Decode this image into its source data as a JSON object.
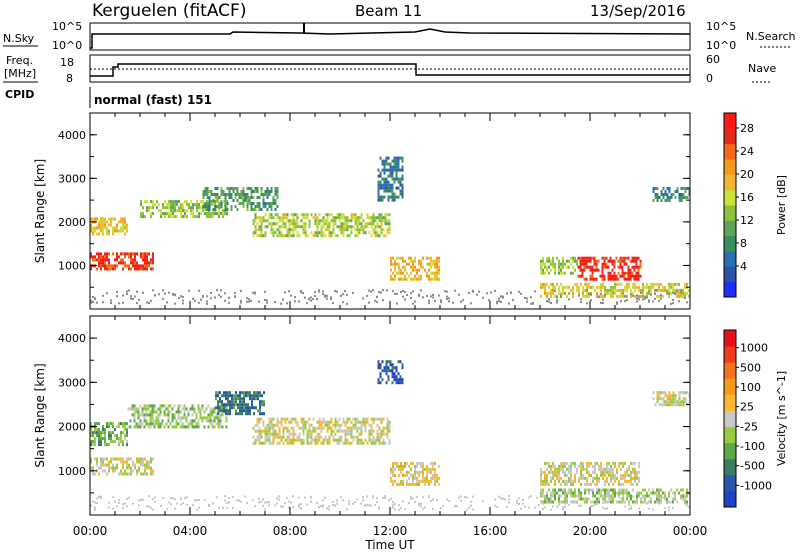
{
  "header": {
    "station": "Kerguelen (fitACF)",
    "beam": "Beam 11",
    "date": "13/Sep/2016"
  },
  "sky_panel": {
    "left_label": "N.Sky",
    "right_label": "N.Search",
    "left_ticks": [
      "10^5",
      "10^0"
    ],
    "right_ticks": [
      "10^5",
      "10^0"
    ]
  },
  "freq_panel": {
    "left_label_1": "Freq.",
    "left_label_2": "[MHz]",
    "right_label": "Nave",
    "left_ticks": [
      "18",
      "8"
    ],
    "right_ticks": [
      "60",
      "0"
    ],
    "cpid_label": "CPID"
  },
  "mode_text": "normal (fast) 151",
  "time_axis": {
    "ticks": [
      "00:00",
      "04:00",
      "08:00",
      "12:00",
      "16:00",
      "20:00",
      "00:00"
    ],
    "label": "Time UT"
  },
  "colors": {
    "power_scale": [
      "#1f2dff",
      "#2b51a6",
      "#2b6fb0",
      "#3c8f5c",
      "#61a35b",
      "#8cc23b",
      "#cde03a",
      "#f2b633",
      "#f7991d",
      "#f26a1b",
      "#e3281c",
      "#ff1a12"
    ],
    "velocity_scale": [
      "#2142c8",
      "#2a56a8",
      "#3a7d62",
      "#5ea84a",
      "#97cc40",
      "#c8c8c8",
      "#f6b92f",
      "#f59a1a",
      "#f2731a",
      "#ed3d1c",
      "#e4101a"
    ],
    "grid": "#000000"
  },
  "chart_data": [
    {
      "type": "heatmap",
      "title": "",
      "xlabel": "",
      "ylabel": "Slant Range [km]",
      "xlim": [
        "00:00",
        "00:00"
      ],
      "ylim": [
        0,
        4500
      ],
      "y_ticks": [
        "1000",
        "2000",
        "3000",
        "4000"
      ],
      "colorbar": {
        "label": "Power [dB]",
        "ticks": [
          "28",
          "24",
          "20",
          "16",
          "12",
          "8",
          "4"
        ],
        "range": [
          0,
          30
        ]
      },
      "regions": [
        {
          "t_start": 0.0,
          "t_end": 1.5,
          "range_start": 1700,
          "range_end": 2100,
          "value": 18
        },
        {
          "t_start": 0.0,
          "t_end": 2.5,
          "range_start": 950,
          "range_end": 1300,
          "value": 26
        },
        {
          "t_start": 2.0,
          "t_end": 5.5,
          "range_start": 2100,
          "range_end": 2500,
          "value": 14
        },
        {
          "t_start": 4.5,
          "t_end": 7.5,
          "range_start": 2300,
          "range_end": 2800,
          "value": 10
        },
        {
          "t_start": 6.5,
          "t_end": 12.0,
          "range_start": 1700,
          "range_end": 2200,
          "value": 15
        },
        {
          "t_start": 11.5,
          "t_end": 12.5,
          "range_start": 2500,
          "range_end": 3500,
          "value": 7
        },
        {
          "t_start": 12.0,
          "t_end": 14.0,
          "range_start": 700,
          "range_end": 1200,
          "value": 19
        },
        {
          "t_start": 18.0,
          "t_end": 19.5,
          "range_start": 800,
          "range_end": 1200,
          "value": 14
        },
        {
          "t_start": 19.5,
          "t_end": 22.0,
          "range_start": 700,
          "range_end": 1200,
          "value": 27
        },
        {
          "t_start": 18.0,
          "t_end": 24.0,
          "range_start": 300,
          "range_end": 600,
          "value": 17
        },
        {
          "t_start": 22.5,
          "t_end": 24.0,
          "range_start": 2500,
          "range_end": 2800,
          "value": 8
        }
      ]
    },
    {
      "type": "heatmap",
      "title": "",
      "xlabel": "Time UT",
      "ylabel": "Slant Range [km]",
      "xlim": [
        "00:00",
        "00:00"
      ],
      "ylim": [
        0,
        4500
      ],
      "y_ticks": [
        "1000",
        "2000",
        "3000",
        "4000"
      ],
      "colorbar": {
        "label": "Velocity [m s^-1]",
        "ticks": [
          "1000",
          "500",
          "100",
          "25",
          "-25",
          "-100",
          "-500",
          "-1000"
        ],
        "range": [
          -1000,
          1000
        ]
      },
      "regions": [
        {
          "t_start": 0.0,
          "t_end": 1.5,
          "range_start": 1600,
          "range_end": 2100,
          "value": -300
        },
        {
          "t_start": 0.0,
          "t_end": 2.5,
          "range_start": 900,
          "range_end": 1300,
          "value": -50
        },
        {
          "t_start": 1.5,
          "t_end": 5.5,
          "range_start": 2000,
          "range_end": 2500,
          "value": -200
        },
        {
          "t_start": 5.0,
          "t_end": 7.0,
          "range_start": 2300,
          "range_end": 2800,
          "value": -600
        },
        {
          "t_start": 6.5,
          "t_end": 12.0,
          "range_start": 1600,
          "range_end": 2200,
          "value": 0
        },
        {
          "t_start": 11.5,
          "t_end": 12.5,
          "range_start": 3000,
          "range_end": 3500,
          "value": -800
        },
        {
          "t_start": 12.0,
          "t_end": 14.0,
          "range_start": 700,
          "range_end": 1200,
          "value": 80
        },
        {
          "t_start": 18.0,
          "t_end": 22.0,
          "range_start": 700,
          "range_end": 1200,
          "value": 0
        },
        {
          "t_start": 18.0,
          "t_end": 24.0,
          "range_start": 300,
          "range_end": 600,
          "value": -150
        },
        {
          "t_start": 22.5,
          "t_end": 24.0,
          "range_start": 2500,
          "range_end": 2800,
          "value": 0
        }
      ]
    }
  ]
}
